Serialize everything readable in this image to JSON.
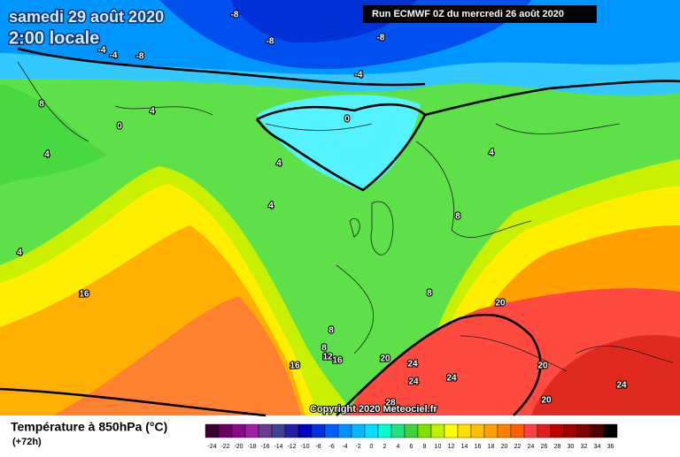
{
  "header": {
    "date": "samedi 29 août 2020",
    "time": "2:00 locale",
    "run": "Run ECMWF 0Z du mercredi 26 août 2020"
  },
  "copyright": "Copyright 2020 Meteociel.fr",
  "map_labels": [
    -8,
    -8,
    -8,
    -4,
    -4,
    -8,
    -4,
    8,
    4,
    0,
    0,
    4,
    4,
    4,
    4,
    8,
    4,
    16,
    8,
    20,
    8,
    8,
    12,
    16,
    20,
    24,
    16,
    24,
    24,
    20,
    24,
    20,
    28
  ],
  "legend": {
    "title": "Température à 850hPa (°C)",
    "lead": "(+72h)",
    "ticks": [
      -24,
      -22,
      -20,
      -18,
      -16,
      -14,
      -12,
      -10,
      -8,
      -6,
      -4,
      -2,
      0,
      2,
      4,
      6,
      8,
      10,
      12,
      14,
      16,
      18,
      20,
      22,
      24,
      26,
      28,
      30,
      32,
      34,
      36
    ],
    "colors": [
      "#3c0030",
      "#6a0060",
      "#8a0a8a",
      "#a020a0",
      "#6a3a90",
      "#404090",
      "#2020a0",
      "#0000c0",
      "#0030e0",
      "#0060ff",
      "#0090ff",
      "#00b8ff",
      "#00e0ff",
      "#00ffd0",
      "#20e080",
      "#40d040",
      "#80e000",
      "#c0f000",
      "#ffff00",
      "#ffe000",
      "#ffc000",
      "#ffa000",
      "#ff8000",
      "#ff6000",
      "#ff4040",
      "#e02020",
      "#c00000",
      "#a00000",
      "#800000",
      "#500000",
      "#000000"
    ]
  }
}
